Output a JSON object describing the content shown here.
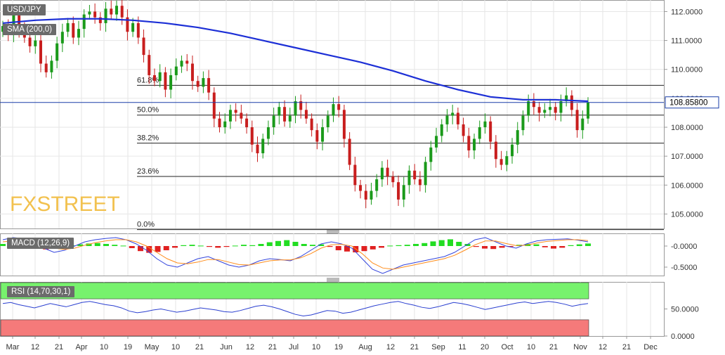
{
  "symbol": "USD/JPY",
  "indicators": {
    "sma": "SMA (200,0)",
    "macd": "MACD (12,26,9)",
    "rsi": "RSI (14,70,30,1)"
  },
  "watermark": "FXSTREET",
  "last_price": "108.85800",
  "colors": {
    "up": "#1a9a1a",
    "down": "#c81e1e",
    "sma": "#1c2fd6",
    "macd": "#3344dd",
    "signal": "#ff8c1a",
    "rsi_over": "#77f26d",
    "rsi_under": "#f57a7a",
    "grid": "#e6e6e6",
    "fib": "#222222",
    "watermark": "#f2c14e"
  },
  "chart_data": [
    {
      "type": "candlestick",
      "title": "USD/JPY",
      "y_ticks": [
        "112.0000",
        "111.0000",
        "110.0000",
        "109.0000",
        "108.0000",
        "107.0000",
        "106.0000",
        "105.0000"
      ],
      "ylim": [
        104.5,
        112.4
      ],
      "x_labels": [
        "Mar",
        "12",
        "21",
        "Apr",
        "10",
        "19",
        "May",
        "10",
        "21",
        "Jun",
        "12",
        "21",
        "Jul",
        "10",
        "19",
        "Aug",
        "12",
        "21",
        "Sep",
        "11",
        "20",
        "Oct",
        "10",
        "21",
        "Nov",
        "12",
        "21",
        "Dec"
      ],
      "fib_levels": [
        {
          "label": "61.8%",
          "value": 109.45
        },
        {
          "label": "50.0%",
          "value": 108.42
        },
        {
          "label": "38.2%",
          "value": 107.45
        },
        {
          "label": "23.6%",
          "value": 106.3
        },
        {
          "label": "0.0%",
          "value": 104.46
        }
      ],
      "sma_200": [
        111.6,
        111.7,
        111.75,
        111.75,
        111.7,
        111.6,
        111.45,
        111.25,
        111.0,
        110.75,
        110.5,
        110.25,
        109.95,
        109.6,
        109.3,
        109.05,
        108.95,
        108.95,
        108.9
      ],
      "candle_closes": [
        111.5,
        111.2,
        111.9,
        111.4,
        111.1,
        110.8,
        111.0,
        110.2,
        109.9,
        110.3,
        110.9,
        111.3,
        111.6,
        111.1,
        111.4,
        111.9,
        112.0,
        111.8,
        111.6,
        112.1,
        111.9,
        112.2,
        111.8,
        111.3,
        111.6,
        111.1,
        110.5,
        109.8,
        109.6,
        109.9,
        109.3,
        109.8,
        110.1,
        110.3,
        110.2,
        109.6,
        109.4,
        109.7,
        109.2,
        108.3,
        108.0,
        108.2,
        108.6,
        108.5,
        108.3,
        108.0,
        107.4,
        107.1,
        107.6,
        108.0,
        108.4,
        108.7,
        108.2,
        108.4,
        108.9,
        108.6,
        108.3,
        107.9,
        107.5,
        108.0,
        108.4,
        108.8,
        108.6,
        107.6,
        106.7,
        106.0,
        105.8,
        105.5,
        105.8,
        106.2,
        106.6,
        106.3,
        106.1,
        105.5,
        106.0,
        106.5,
        106.2,
        106.0,
        106.8,
        107.3,
        107.7,
        108.1,
        108.4,
        108.5,
        108.1,
        107.7,
        107.2,
        107.6,
        108.0,
        108.2,
        107.5,
        106.9,
        106.7,
        107.0,
        107.4,
        107.9,
        108.4,
        108.9,
        108.7,
        108.5,
        108.6,
        108.7,
        108.5,
        108.9,
        109.1,
        108.6,
        107.9,
        108.3,
        108.86
      ],
      "last_price": 108.858
    },
    {
      "type": "macd",
      "y_ticks": [
        "-0.0000",
        "-0.5000"
      ],
      "histogram": [
        0.05,
        0.06,
        0.04,
        0.02,
        -0.05,
        -0.08,
        -0.06,
        -0.03,
        0.02,
        0.04,
        0.06,
        0.07,
        0.05,
        0.03,
        0.01,
        -0.05,
        -0.12,
        -0.16,
        -0.14,
        -0.1,
        -0.04,
        0.02,
        0.03,
        0.01,
        -0.02,
        -0.04,
        -0.02,
        0.01,
        0.03,
        0.02,
        0.05,
        0.09,
        0.12,
        0.14,
        0.1,
        0.05,
        0.03,
        0.04,
        -0.02,
        -0.1,
        -0.13,
        -0.15,
        -0.12,
        -0.08,
        -0.04,
        0.01,
        0.02,
        0.03,
        0.05,
        0.07,
        0.11,
        0.14,
        0.16,
        0.1,
        0.05,
        -0.02,
        -0.06,
        -0.07,
        -0.04,
        -0.02,
        0.03,
        0.05,
        0.04,
        -0.03,
        -0.06,
        -0.04,
        0.02,
        0.04,
        0.06
      ],
      "macd_line": [
        0.15,
        0.2,
        0.18,
        0.1,
        -0.05,
        -0.15,
        -0.1,
        0.0,
        0.1,
        0.15,
        0.18,
        0.2,
        0.15,
        0.05,
        -0.1,
        -0.3,
        -0.45,
        -0.5,
        -0.4,
        -0.3,
        -0.25,
        -0.35,
        -0.45,
        -0.5,
        -0.45,
        -0.35,
        -0.3,
        -0.32,
        -0.35,
        -0.25,
        -0.1,
        0.05,
        0.1,
        0.05,
        -0.05,
        -0.3,
        -0.55,
        -0.65,
        -0.55,
        -0.45,
        -0.4,
        -0.35,
        -0.3,
        -0.25,
        -0.15,
        0.0,
        0.15,
        0.2,
        0.1,
        0.0,
        -0.05,
        0.05,
        0.12,
        0.15,
        0.16,
        0.17,
        0.14,
        0.1
      ],
      "signal_line": [
        0.1,
        0.12,
        0.14,
        0.12,
        0.05,
        -0.05,
        -0.08,
        -0.05,
        0.02,
        0.08,
        0.12,
        0.15,
        0.15,
        0.1,
        0.0,
        -0.15,
        -0.3,
        -0.4,
        -0.42,
        -0.38,
        -0.32,
        -0.32,
        -0.38,
        -0.44,
        -0.45,
        -0.4,
        -0.35,
        -0.33,
        -0.33,
        -0.28,
        -0.18,
        -0.05,
        0.03,
        0.04,
        0.0,
        -0.18,
        -0.4,
        -0.52,
        -0.55,
        -0.5,
        -0.45,
        -0.4,
        -0.35,
        -0.3,
        -0.22,
        -0.1,
        0.03,
        0.12,
        0.12,
        0.06,
        0.01,
        0.02,
        0.07,
        0.11,
        0.13,
        0.15,
        0.15,
        0.13
      ]
    },
    {
      "type": "rsi",
      "y_ticks": [
        "50.0000",
        "0.0000"
      ],
      "overbought": 70,
      "oversold": 30,
      "values": [
        60,
        62,
        58,
        55,
        52,
        56,
        60,
        57,
        54,
        58,
        62,
        64,
        61,
        58,
        56,
        52,
        46,
        43,
        45,
        48,
        50,
        47,
        44,
        46,
        49,
        52,
        50,
        48,
        45,
        44,
        47,
        51,
        55,
        57,
        54,
        50,
        45,
        40,
        37,
        39,
        43,
        47,
        46,
        42,
        44,
        48,
        52,
        56,
        59,
        62,
        64,
        60,
        57,
        53,
        51,
        54,
        58,
        62,
        60,
        57,
        53,
        49,
        52,
        55,
        58,
        61,
        63,
        60,
        62,
        64,
        62,
        59,
        55,
        58,
        60
      ]
    }
  ]
}
